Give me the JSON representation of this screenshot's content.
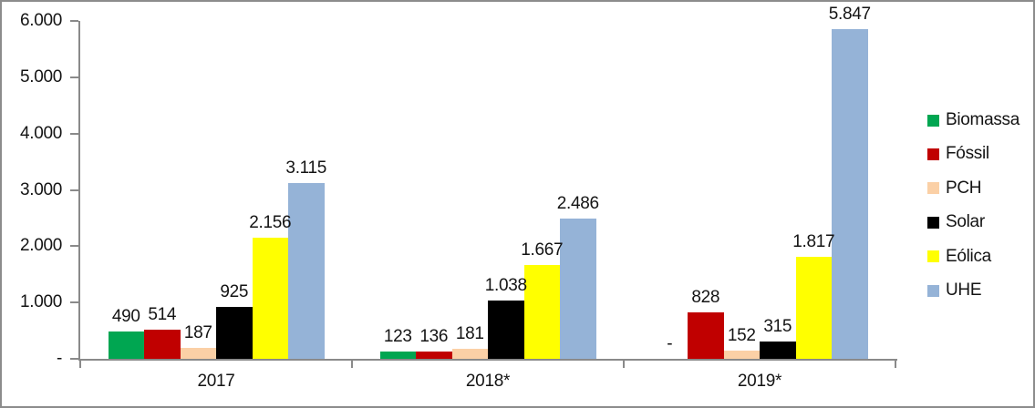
{
  "window": {
    "background": "#FFFFFF",
    "frame_border_color": "#8C8C8C"
  },
  "chart_data": {
    "type": "bar",
    "title": "",
    "xlabel": "",
    "ylabel": "",
    "categories": [
      "2017",
      "2018*",
      "2019*"
    ],
    "series": [
      {
        "name": "Biomassa",
        "color": "#00A651",
        "values": [
          490,
          123,
          0
        ],
        "labels": [
          "490",
          "123",
          "-"
        ]
      },
      {
        "name": "Fóssil",
        "color": "#C00000",
        "values": [
          514,
          136,
          828
        ],
        "labels": [
          "514",
          "136",
          "828"
        ]
      },
      {
        "name": "PCH",
        "color": "#FBD0A6",
        "values": [
          187,
          181,
          152
        ],
        "labels": [
          "187",
          "181",
          "152"
        ]
      },
      {
        "name": "Solar",
        "color": "#000000",
        "values": [
          925,
          1038,
          315
        ],
        "labels": [
          "925",
          "1.038",
          "315"
        ]
      },
      {
        "name": "Eólica",
        "color": "#FFFF00",
        "values": [
          2156,
          1667,
          1817
        ],
        "labels": [
          "2.156",
          "1.667",
          "1.817"
        ]
      },
      {
        "name": "UHE",
        "color": "#95B3D7",
        "values": [
          3115,
          2486,
          5847
        ],
        "labels": [
          "3.115",
          "2.486",
          "5.847"
        ]
      }
    ],
    "y_axis": {
      "min": 0,
      "max": 6000,
      "tick_interval": 1000,
      "tick_labels": [
        "-",
        "1.000",
        "2.000",
        "3.000",
        "4.000",
        "5.000",
        "6.000"
      ]
    },
    "legend": {
      "position": "right",
      "entries": [
        "Biomassa",
        "Fóssil",
        "PCH",
        "Solar",
        "Eólica",
        "UHE"
      ]
    },
    "grid": false,
    "axis_color": "#8A8A8A",
    "text_color": "#141414"
  }
}
